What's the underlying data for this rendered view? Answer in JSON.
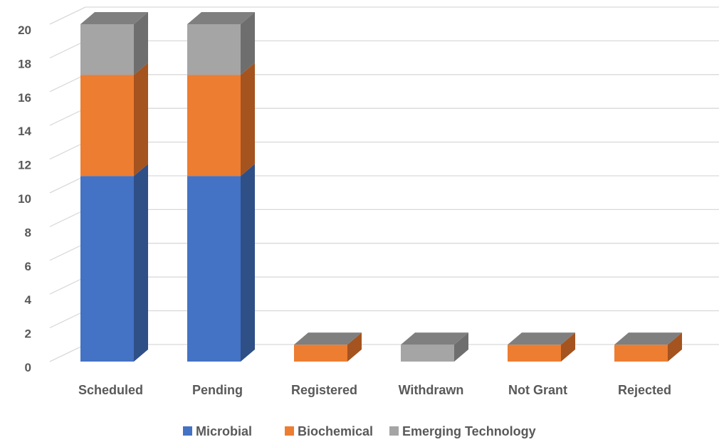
{
  "chart_data": {
    "type": "bar",
    "stacked": true,
    "three_d": true,
    "categories": [
      "Scheduled",
      "Pending",
      "Registered",
      "Withdrawn",
      "Not Grant",
      "Rejected"
    ],
    "series": [
      {
        "name": "Microbial",
        "values": [
          11,
          11,
          0,
          0,
          0,
          0
        ]
      },
      {
        "name": "Biochemical",
        "values": [
          6,
          6,
          1,
          0,
          1,
          1
        ]
      },
      {
        "name": "Emerging Technology",
        "values": [
          3,
          3,
          0,
          1,
          0,
          0
        ]
      }
    ],
    "colors": {
      "Microbial": {
        "front": "#4472c4",
        "side": "#2f4f87"
      },
      "Biochemical": {
        "front": "#ed7d31",
        "side": "#a5531f"
      },
      "Emerging Technology": {
        "front": "#a5a5a5",
        "side": "#6e6e6e"
      },
      "top": "#7f7f7f"
    },
    "yticks": [
      0,
      2,
      4,
      6,
      8,
      10,
      12,
      14,
      16,
      18,
      20
    ],
    "ylim": [
      0,
      20
    ],
    "grid": true,
    "legend": "bottom",
    "title": "",
    "xlabel": "",
    "ylabel": ""
  }
}
